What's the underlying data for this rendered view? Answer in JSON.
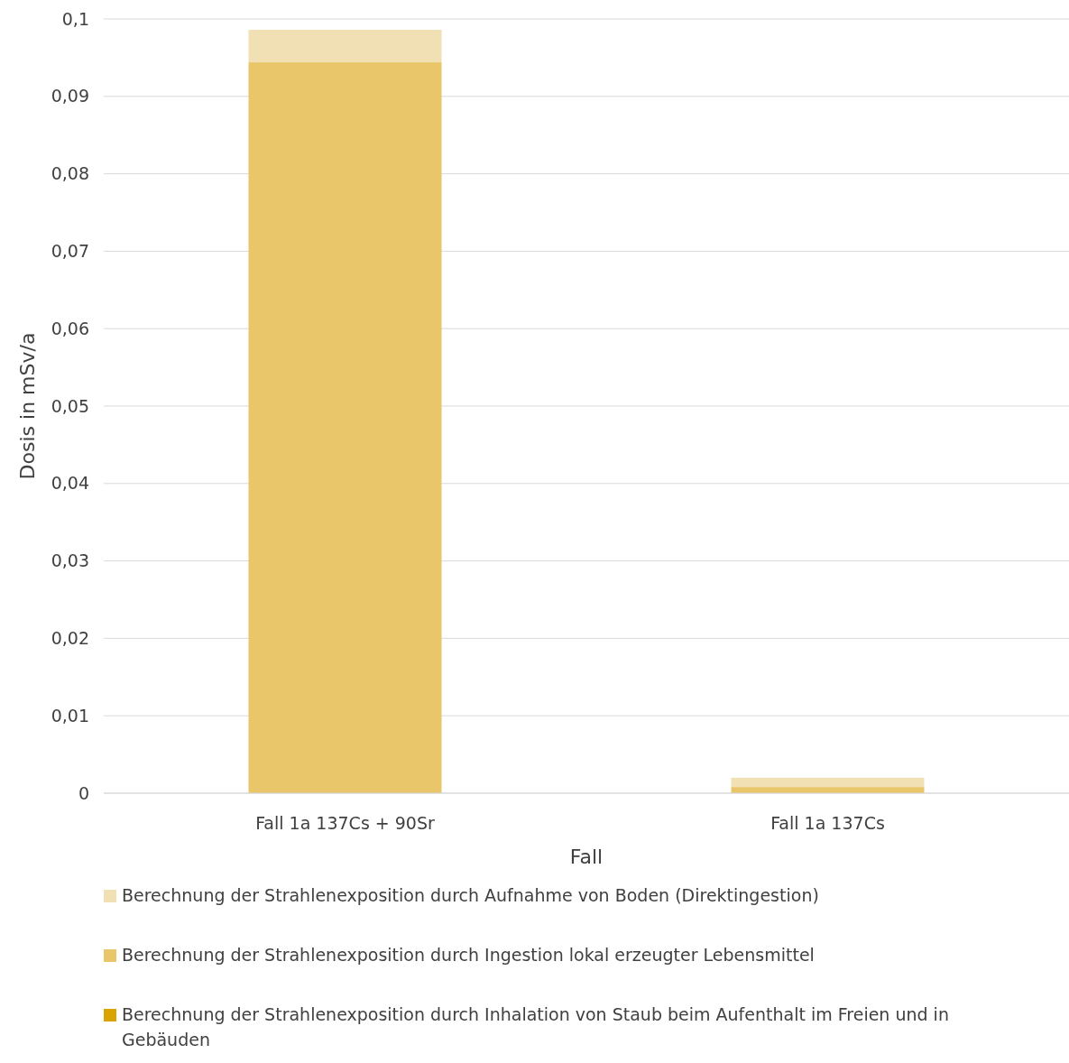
{
  "chart_data": {
    "type": "bar",
    "stacked": true,
    "xlabel": "Fall",
    "ylabel": "Dosis in mSv/a",
    "categories": [
      "Fall 1a 137Cs + 90Sr",
      "Fall 1a 137Cs"
    ],
    "series": [
      {
        "name": "Berechnung der Strahlenexposition durch Inhalation von Staub beim Aufenthalt im Freien und in Gebäuden",
        "color": "#d9a400",
        "values": [
          0,
          0
        ]
      },
      {
        "name": "Berechnung der Strahlenexposition durch Ingestion lokal erzeugter Lebensmittel",
        "color": "#eac66a",
        "values": [
          0.0944,
          0.0008
        ]
      },
      {
        "name": "Berechnung der Strahlenexposition durch Aufnahme von Boden (Direktingestion)",
        "color": "#f0e0b4",
        "values": [
          0.0042,
          0.0012
        ]
      }
    ],
    "ylim": [
      0,
      0.1
    ],
    "yticks": [
      {
        "value": 0,
        "label": "0"
      },
      {
        "value": 0.01,
        "label": "0,01"
      },
      {
        "value": 0.02,
        "label": "0,02"
      },
      {
        "value": 0.03,
        "label": "0,03"
      },
      {
        "value": 0.04,
        "label": "0,04"
      },
      {
        "value": 0.05,
        "label": "0,05"
      },
      {
        "value": 0.06,
        "label": "0,06"
      },
      {
        "value": 0.07,
        "label": "0,07"
      },
      {
        "value": 0.08,
        "label": "0,08"
      },
      {
        "value": 0.09,
        "label": "0,09"
      },
      {
        "value": 0.1,
        "label": "0,1"
      }
    ],
    "grid": "y",
    "legend": "bottom"
  }
}
